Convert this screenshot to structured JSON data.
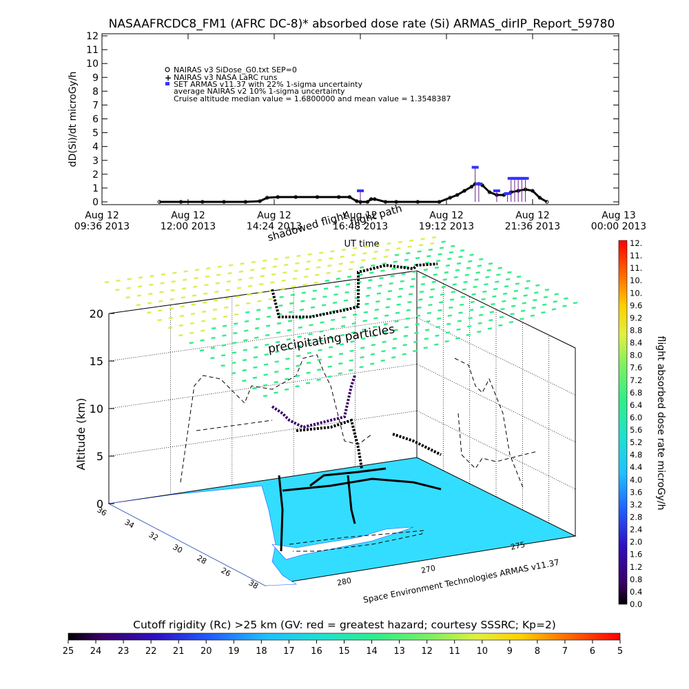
{
  "title": "NASAAFRCDC8_FM1 (AFRC DC-8)* absorbed dose rate (Si) ARMAS_dirIP_Report_59780",
  "top_chart": {
    "ylabel": "dD(Si)/dt microGy/h",
    "xlabel": "UT time",
    "legend": [
      "NAIRAS v3 SiDose_G0.txt SEP=0",
      "NAIRAS v3 NASA LaRC runs",
      "SET ARMAS v11.37 with 22% 1-sigma uncertainty",
      "average NAIRAS v2 10% 1-sigma uncertainty",
      "Cruise altitude median value = 1.6800000 and mean value = 1.3548387"
    ],
    "overlay_label_1": "flight path",
    "overlay_label_2": "shadowed flight"
  },
  "chart_data": [
    {
      "type": "line",
      "title": "NASAAFRCDC8_FM1 (AFRC DC-8)* absorbed dose rate (Si) ARMAS_dirIP_Report_59780",
      "xlabel": "UT time",
      "ylabel": "dD(Si)/dt microGy/h",
      "ylim": [
        0,
        12
      ],
      "yticks": [
        "0",
        "1",
        "2",
        "3",
        "4",
        "5",
        "6",
        "7",
        "8",
        "9",
        "10",
        "11",
        "12"
      ],
      "xticks": [
        {
          "line1": "Aug 12",
          "line2": "09:36 2013"
        },
        {
          "line1": "Aug 12",
          "line2": "12:00 2013"
        },
        {
          "line1": "Aug 12",
          "line2": "14:24 2013"
        },
        {
          "line1": "Aug 12",
          "line2": "16:48 2013"
        },
        {
          "line1": "Aug 12",
          "line2": "19:12 2013"
        },
        {
          "line1": "Aug 12",
          "line2": "21:36 2013"
        },
        {
          "line1": "Aug 13",
          "line2": "00:00 2013"
        }
      ],
      "xlim_hours": [
        9.6,
        24.0
      ],
      "series": [
        {
          "name": "NAIRAS v3 SiDose_G0.txt SEP=0",
          "x_hours": [
            11.2,
            11.8,
            12.4,
            13.0,
            13.6,
            14.0,
            14.2,
            14.5,
            15.0,
            15.6,
            16.2,
            16.5,
            16.7,
            16.8,
            17.0,
            17.1,
            17.2,
            17.5,
            17.8,
            18.4,
            19.0,
            19.3,
            19.5,
            19.7,
            19.9,
            20.0,
            20.1,
            20.2,
            20.4,
            20.6,
            20.8,
            21.0,
            21.2,
            21.4,
            21.6,
            21.8,
            22.0
          ],
          "values": [
            0,
            0,
            0,
            0,
            0,
            0.05,
            0.3,
            0.35,
            0.35,
            0.35,
            0.35,
            0.35,
            0.05,
            0,
            0,
            0.2,
            0.2,
            0,
            0,
            0,
            0,
            0.3,
            0.5,
            0.8,
            1.1,
            1.3,
            1.3,
            1.2,
            0.7,
            0.5,
            0.5,
            0.7,
            0.8,
            0.9,
            0.8,
            0.3,
            0
          ]
        },
        {
          "name": "SET ARMAS v11.37 with 22% 1-sigma uncertainty",
          "x_hours": [
            16.8,
            20.0,
            20.1,
            20.6,
            20.9,
            21.0,
            21.1,
            21.2,
            21.3,
            21.4
          ],
          "values": [
            0.8,
            2.5,
            1.3,
            0.8,
            0.6,
            1.7,
            1.7,
            1.7,
            1.7,
            1.7
          ]
        }
      ]
    },
    {
      "type": "scatter",
      "title": "",
      "zlabel": "Altitude (km)",
      "zticks": [
        "0",
        "5",
        "10",
        "15",
        "20"
      ],
      "lat_ticks": [
        "36",
        "34",
        "32",
        "30",
        "28",
        "26",
        "38"
      ],
      "lon_ticks": [
        "280",
        "270",
        "275"
      ],
      "label_precip": "precipitating particles",
      "credit": "Space Environment Technologies ARMAS v11.37"
    }
  ],
  "right_colorbar": {
    "label": "flight absorbed dose rate microGy/h",
    "ticks": [
      "12.",
      "11.",
      "11.",
      "10.",
      "10.",
      "9.6",
      "9.2",
      "8.8",
      "8.4",
      "8.0",
      "7.6",
      "7.2",
      "6.8",
      "6.4",
      "6.0",
      "5.6",
      "5.2",
      "4.8",
      "4.4",
      "4.0",
      "3.6",
      "3.2",
      "2.8",
      "2.4",
      "2.0",
      "1.6",
      "1.2",
      "0.8",
      "0.4",
      "0.0"
    ]
  },
  "bottom_colorbar": {
    "label": "Cutoff rigidity (Rc) >25 km (GV: red = greatest hazard; courtesy SSSRC; Kp=2)",
    "ticks": [
      "25",
      "24",
      "23",
      "22",
      "21",
      "20",
      "19",
      "18",
      "17",
      "16",
      "15",
      "14",
      "13",
      "12",
      "11",
      "10",
      "9",
      "8",
      "7",
      "6",
      "5"
    ]
  },
  "colors": {
    "nairas": "#000000",
    "armas": "#3333ff",
    "armas_bar": "#6a1f8f",
    "ocean": "#33ddff",
    "land": "#ffffff",
    "precip_low": "#33ee88",
    "precip_high": "#ddee55"
  }
}
